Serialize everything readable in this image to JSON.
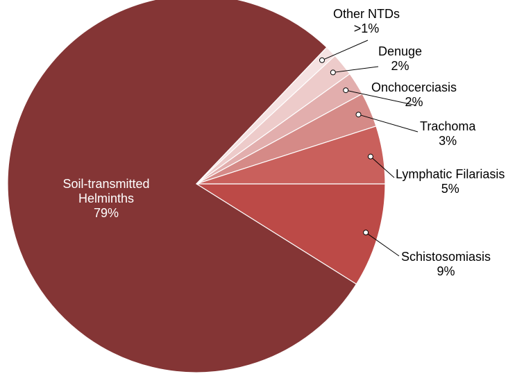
{
  "chart_data": {
    "type": "pie",
    "categories": [
      "Schistosomiasis",
      "Soil-transmitted Helminths",
      "Other NTDs",
      "Denuge",
      "Onchocerciasis",
      "Trachoma",
      "Lymphatic Filariasis"
    ],
    "values": [
      9,
      79,
      1,
      2,
      2,
      3,
      5
    ],
    "value_labels": [
      "9%",
      "79%",
      ">1%",
      "2%",
      "2%",
      "3%",
      "5%"
    ],
    "colors": [
      "#bc4a47",
      "#843535",
      "#f5e2e2",
      "#edcbca",
      "#e2aead",
      "#d58a87",
      "#c9605c"
    ]
  }
}
